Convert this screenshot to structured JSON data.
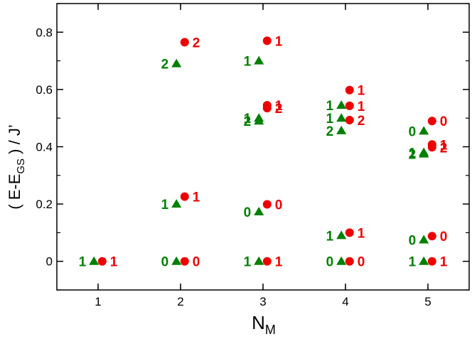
{
  "chart_data": {
    "type": "scatter",
    "xlabel": {
      "main": "N",
      "sub": "M"
    },
    "ylabel": {
      "prefix": "( E-E",
      "sub": "GS",
      "suffix": " ) / J’"
    },
    "xlim": [
      0.5,
      5.5
    ],
    "ylim": [
      -0.1,
      0.9
    ],
    "xticks": [
      1,
      2,
      3,
      4,
      5
    ],
    "xtick_labels": [
      "1",
      "2",
      "3",
      "4",
      "5"
    ],
    "yticks": [
      0,
      0.2,
      0.4,
      0.6,
      0.8
    ],
    "ytick_labels": [
      "0",
      "0.2",
      "0.4",
      "0.6",
      "0.8"
    ],
    "grid": false,
    "colors": {
      "triangles": "#008000",
      "circles": "#ee0000"
    },
    "series": [
      {
        "marker": "triangle",
        "color": "#008000",
        "points": [
          {
            "x": 0.95,
            "y": 0.0,
            "label": "1"
          },
          {
            "x": 1.95,
            "y": 0.0,
            "label": "0"
          },
          {
            "x": 1.95,
            "y": 0.2,
            "label": "1"
          },
          {
            "x": 1.95,
            "y": 0.69,
            "label": "2"
          },
          {
            "x": 2.95,
            "y": 0.0,
            "label": "1"
          },
          {
            "x": 2.95,
            "y": 0.173,
            "label": "0"
          },
          {
            "x": 2.95,
            "y": 0.49,
            "label": "2"
          },
          {
            "x": 2.95,
            "y": 0.5,
            "label": "1"
          },
          {
            "x": 2.95,
            "y": 0.7,
            "label": "1"
          },
          {
            "x": 3.95,
            "y": 0.0,
            "label": "0"
          },
          {
            "x": 3.95,
            "y": 0.09,
            "label": "1"
          },
          {
            "x": 3.95,
            "y": 0.456,
            "label": "2"
          },
          {
            "x": 3.95,
            "y": 0.5,
            "label": "1"
          },
          {
            "x": 3.95,
            "y": 0.545,
            "label": "1"
          },
          {
            "x": 4.95,
            "y": 0.0,
            "label": "1"
          },
          {
            "x": 4.95,
            "y": 0.075,
            "label": "0"
          },
          {
            "x": 4.95,
            "y": 0.375,
            "label": "2"
          },
          {
            "x": 4.95,
            "y": 0.38,
            "label": "1"
          },
          {
            "x": 4.95,
            "y": 0.455,
            "label": "0"
          }
        ]
      },
      {
        "marker": "circle",
        "color": "#ee0000",
        "points": [
          {
            "x": 1.05,
            "y": 0.0,
            "label": "1"
          },
          {
            "x": 2.05,
            "y": 0.0,
            "label": "0"
          },
          {
            "x": 2.05,
            "y": 0.226,
            "label": "1"
          },
          {
            "x": 2.05,
            "y": 0.765,
            "label": "2"
          },
          {
            "x": 3.05,
            "y": 0.0,
            "label": "1"
          },
          {
            "x": 3.05,
            "y": 0.199,
            "label": "0"
          },
          {
            "x": 3.05,
            "y": 0.535,
            "label": "2"
          },
          {
            "x": 3.05,
            "y": 0.545,
            "label": "1"
          },
          {
            "x": 3.05,
            "y": 0.77,
            "label": "1"
          },
          {
            "x": 4.05,
            "y": 0.0,
            "label": "0"
          },
          {
            "x": 4.05,
            "y": 0.1,
            "label": "1"
          },
          {
            "x": 4.05,
            "y": 0.493,
            "label": "2"
          },
          {
            "x": 4.05,
            "y": 0.543,
            "label": "1"
          },
          {
            "x": 4.05,
            "y": 0.598,
            "label": "1"
          },
          {
            "x": 5.05,
            "y": 0.0,
            "label": "1"
          },
          {
            "x": 5.05,
            "y": 0.088,
            "label": "0"
          },
          {
            "x": 5.05,
            "y": 0.398,
            "label": "2"
          },
          {
            "x": 5.05,
            "y": 0.408,
            "label": "1"
          },
          {
            "x": 5.05,
            "y": 0.49,
            "label": "0"
          }
        ]
      }
    ]
  }
}
